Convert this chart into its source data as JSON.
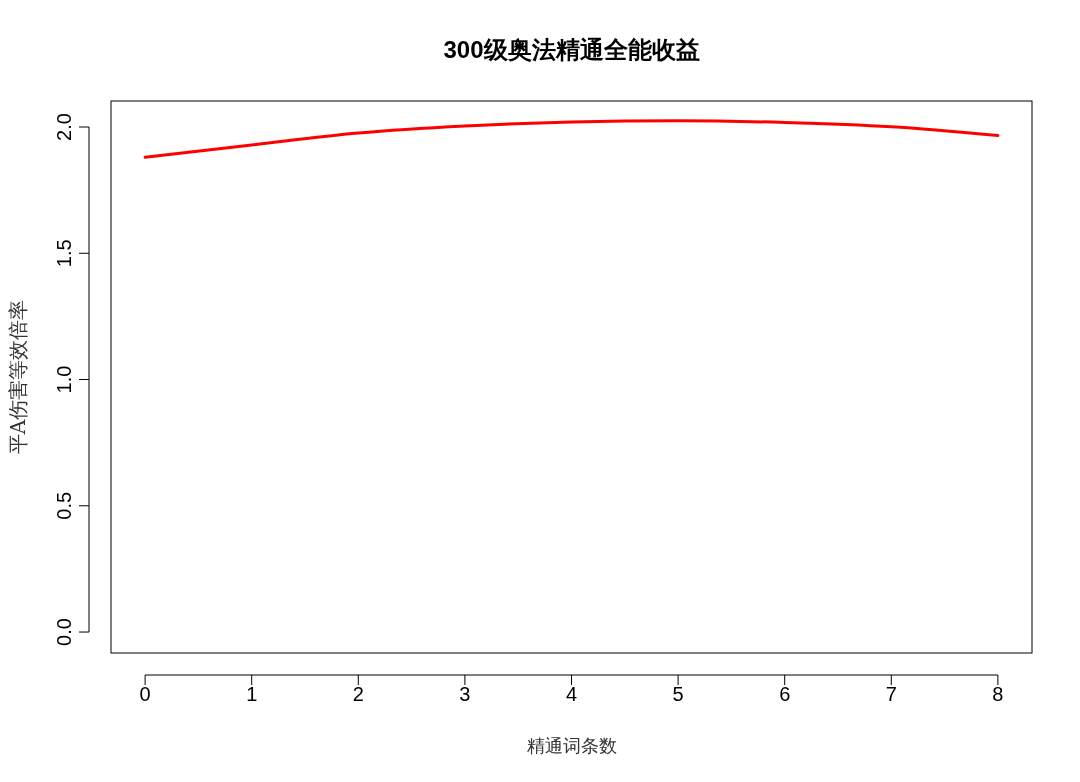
{
  "chart_data": {
    "type": "line",
    "title": "300级奥法精通全能收益",
    "xlabel": "精通词条数",
    "ylabel": "平A伤害等效倍率",
    "x": [
      0,
      1,
      2,
      3,
      4,
      5,
      6,
      7,
      8
    ],
    "series": [
      {
        "color": "#ff0000",
        "values": [
          1.88,
          1.929,
          1.976,
          2.004,
          2.02,
          2.025,
          2.018,
          2.001,
          1.966
        ]
      }
    ],
    "xlim": [
      -0.32,
      8.32
    ],
    "ylim": [
      -0.083,
      2.103
    ],
    "xticks": [
      0,
      1,
      2,
      3,
      4,
      5,
      6,
      7,
      8
    ],
    "yticks": [
      {
        "value": 0,
        "label": "0.0"
      },
      {
        "value": 0.5,
        "label": "0.5"
      },
      {
        "value": 1,
        "label": "1.0"
      },
      {
        "value": 1.5,
        "label": "1.5"
      },
      {
        "value": 2,
        "label": "2.0"
      }
    ],
    "marker": "none",
    "line_style": "solid"
  }
}
